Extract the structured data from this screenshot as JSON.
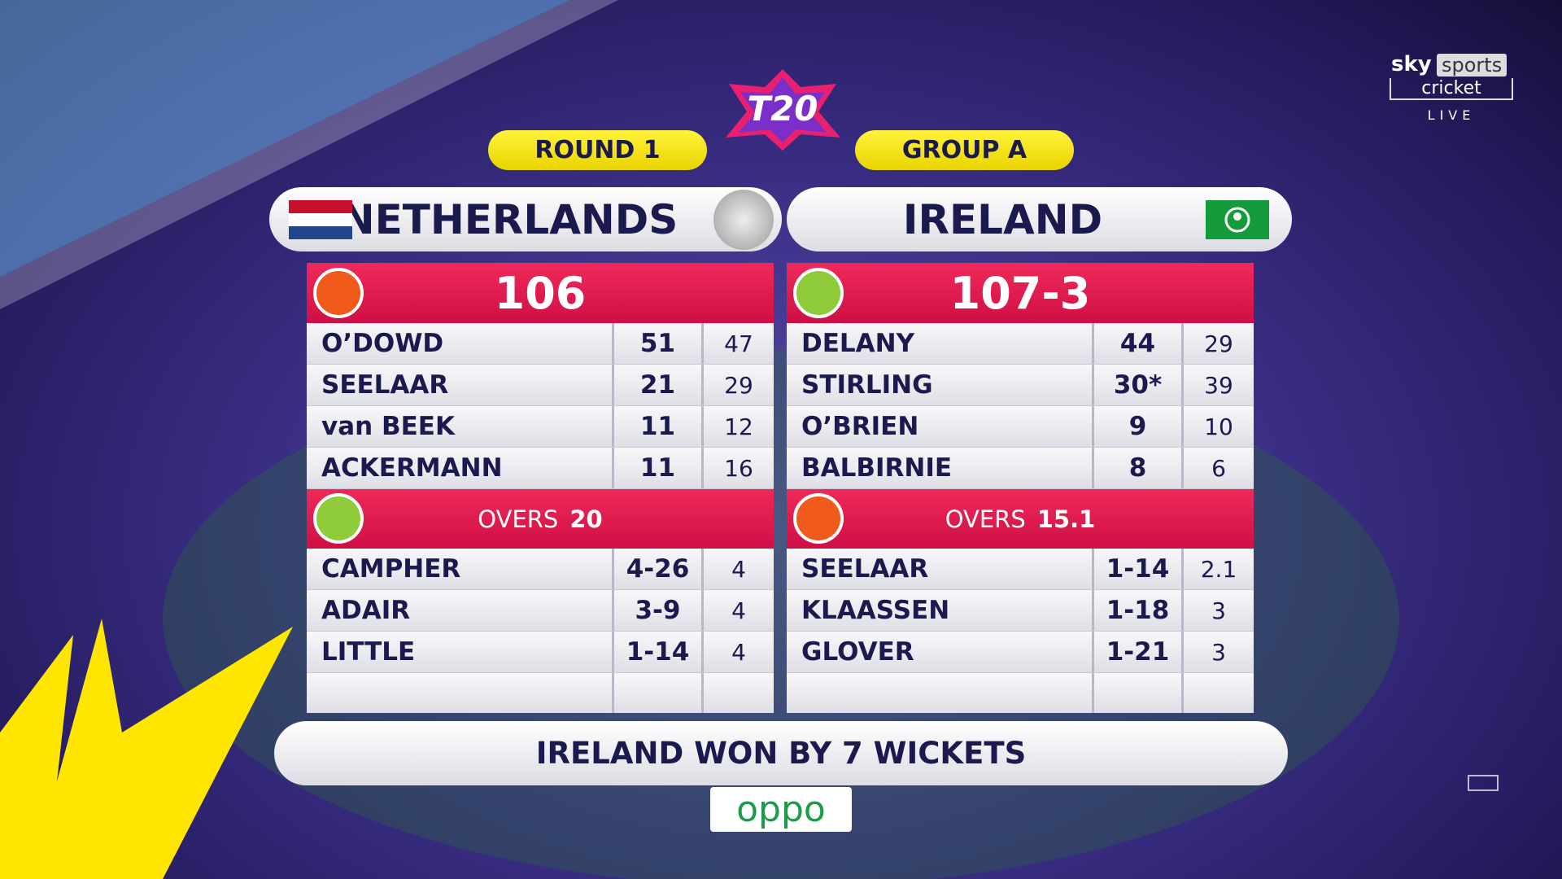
{
  "broadcaster": {
    "brand": "sky",
    "channel": "sports",
    "subchannel": "cricket",
    "status": "LIVE"
  },
  "event": {
    "logo": "T20",
    "round": "ROUND 1",
    "group": "GROUP A"
  },
  "teams": [
    {
      "name": "NETHERLANDS",
      "score": 106,
      "overs_label": "OVERS",
      "overs": 20,
      "batting": [
        {
          "name": "O’DOWD",
          "runs": 51,
          "balls": 47
        },
        {
          "name": "SEELAAR",
          "runs": 21,
          "balls": 29
        },
        {
          "name": "van BEEK",
          "runs": 11,
          "balls": 12
        },
        {
          "name": "ACKERMANN",
          "runs": 11,
          "balls": 16
        }
      ],
      "bowling": [
        {
          "name": "CAMPHER",
          "figures": "4-26",
          "overs": 4
        },
        {
          "name": "ADAIR",
          "figures": "3-9",
          "overs": 4
        },
        {
          "name": "LITTLE",
          "figures": "1-14",
          "overs": 4
        }
      ]
    },
    {
      "name": "IRELAND",
      "score": "107-3",
      "overs_label": "OVERS",
      "overs": 15.1,
      "batting": [
        {
          "name": "DELANY",
          "runs": 44,
          "balls": 29
        },
        {
          "name": "STIRLING",
          "runs": "30*",
          "balls": 39
        },
        {
          "name": "O’BRIEN",
          "runs": 9,
          "balls": 10
        },
        {
          "name": "BALBIRNIE",
          "runs": 8,
          "balls": 6
        }
      ],
      "bowling": [
        {
          "name": "SEELAAR",
          "figures": "1-14",
          "overs": 2.1
        },
        {
          "name": "KLAASSEN",
          "figures": "1-18",
          "overs": 3
        },
        {
          "name": "GLOVER",
          "figures": "1-21",
          "overs": 3
        }
      ]
    }
  ],
  "result": "IRELAND WON BY 7 WICKETS",
  "sponsor": "oppo"
}
